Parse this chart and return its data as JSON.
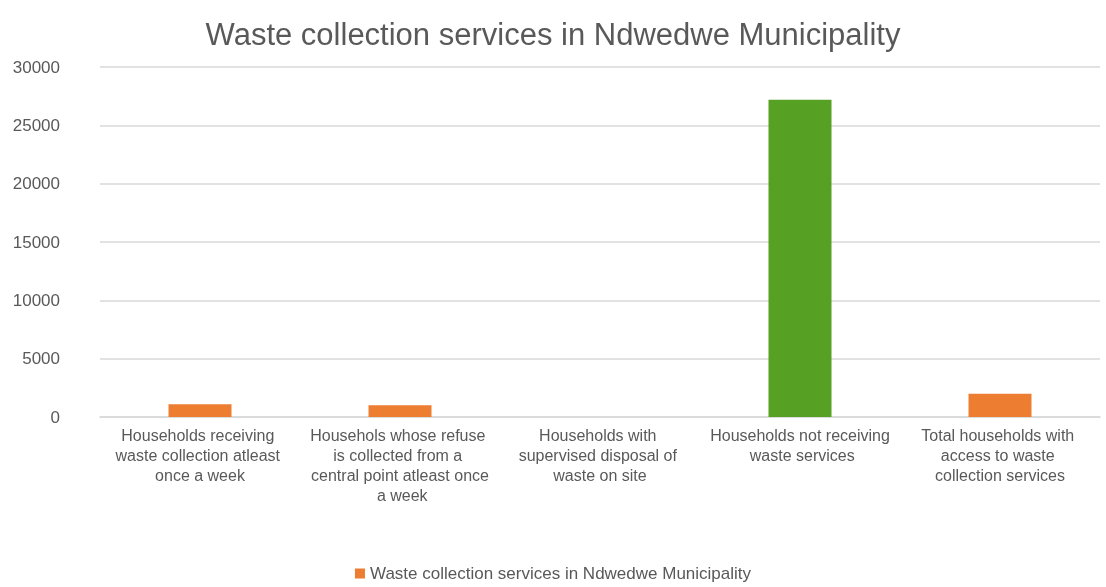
{
  "chart_data": {
    "type": "bar",
    "title": "Waste collection services in Ndwedwe Municipality",
    "categories": [
      "Households receiving waste collection atleast once a week",
      "Househols whose refuse is collected from a central point atleast once a week",
      "Households with supervised disposal of waste on site",
      "Households not receiving waste services",
      "Total households with access to waste collection services"
    ],
    "series": [
      {
        "name": "Waste collection services in Ndwedwe Municipality",
        "color": "#ed7d31",
        "colors": [
          "#ed7d31",
          "#ed7d31",
          "#ed7d31",
          "#56a023",
          "#ed7d31"
        ],
        "values": [
          1100,
          1000,
          0,
          27200,
          2000
        ]
      }
    ],
    "ylim": [
      0,
      30000
    ],
    "yticks": [
      0,
      5000,
      10000,
      15000,
      20000,
      25000,
      30000
    ],
    "grid": "y",
    "legend": "bottom"
  }
}
